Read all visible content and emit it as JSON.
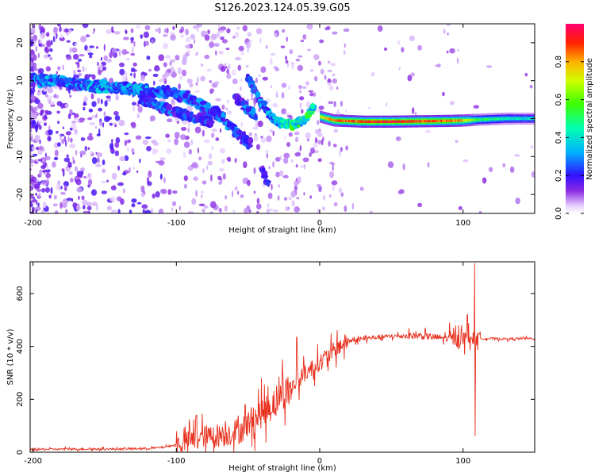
{
  "title": "S126.2023.124.05.39.G05",
  "chart_data": [
    {
      "type": "heatmap",
      "xlabel": "Height of straight line (km)",
      "ylabel": "Frequency (Hz)",
      "xlim": [
        -202,
        150
      ],
      "ylim": [
        -25,
        25
      ],
      "xticks": [
        -200,
        -100,
        0,
        100
      ],
      "xtick_labels": [
        "-200",
        "-100",
        "0",
        "100"
      ],
      "yticks": [
        -20,
        -10,
        0,
        10,
        20
      ],
      "ytick_labels": [
        "-20",
        "-10",
        "0",
        "10",
        "20"
      ],
      "colorbar": {
        "label": "Normalized spectral amplitude",
        "range": [
          0,
          1
        ],
        "ticks": [
          0.0,
          0.2,
          0.4,
          0.6,
          0.8
        ],
        "tick_labels": [
          "0.0",
          "0.2",
          "0.4",
          "0.6",
          "0.8"
        ]
      },
      "ridge": [
        {
          "x": -200,
          "y": 10,
          "a": 0.25
        },
        {
          "x": -188,
          "y": 10,
          "a": 0.35
        },
        {
          "x": -175,
          "y": 9.5,
          "a": 0.25
        },
        {
          "x": -160,
          "y": 8.8,
          "a": 0.35
        },
        {
          "x": -145,
          "y": 8.2,
          "a": 0.3
        },
        {
          "x": -130,
          "y": 7.8,
          "a": 0.3
        },
        {
          "x": -118,
          "y": 7.2,
          "a": 0.3
        },
        {
          "x": -105,
          "y": 6.8,
          "a": 0.28
        },
        {
          "x": -90,
          "y": 5.5,
          "a": 0.28
        },
        {
          "x": -80,
          "y": 3,
          "a": 0.25
        },
        {
          "x": -70,
          "y": 1,
          "a": 0.25
        },
        {
          "x": -60,
          "y": -3,
          "a": 0.3
        },
        {
          "x": -55,
          "y": -5,
          "a": 0.25
        },
        {
          "x": -48,
          "y": -7,
          "a": 0.2
        }
      ],
      "ridge2": [
        {
          "x": -125,
          "y": 5,
          "a": 0.25
        },
        {
          "x": -110,
          "y": 3,
          "a": 0.28
        },
        {
          "x": -98,
          "y": 1.5,
          "a": 0.25
        },
        {
          "x": -88,
          "y": 0.5,
          "a": 0.25
        },
        {
          "x": -75,
          "y": -1,
          "a": 0.22
        }
      ],
      "arc": [
        {
          "x": -58,
          "y": 5.5,
          "a": 0.2
        },
        {
          "x": -52,
          "y": 3,
          "a": 0.25
        },
        {
          "x": -45,
          "y": 1,
          "a": 0.25
        }
      ],
      "arc2": [
        {
          "x": -50,
          "y": 11,
          "a": 0.22
        },
        {
          "x": -45,
          "y": 7,
          "a": 0.25
        },
        {
          "x": -40,
          "y": 4,
          "a": 0.28
        },
        {
          "x": -34,
          "y": 0.5,
          "a": 0.3
        },
        {
          "x": -28,
          "y": -1,
          "a": 0.4
        },
        {
          "x": -22,
          "y": -1.5,
          "a": 0.45
        },
        {
          "x": -18,
          "y": -1.8,
          "a": 0.5
        },
        {
          "x": -12,
          "y": -0.5,
          "a": 0.45
        },
        {
          "x": -8,
          "y": 1,
          "a": 0.45
        },
        {
          "x": -5,
          "y": 3,
          "a": 0.45
        }
      ],
      "tail": [
        {
          "x": -40,
          "y": -13,
          "a": 0.2
        },
        {
          "x": -36,
          "y": -17,
          "a": 0.2
        }
      ],
      "band": [
        {
          "x": 0,
          "y": 0.5,
          "a": 0.75
        },
        {
          "x": 10,
          "y": -0.5,
          "a": 0.85
        },
        {
          "x": 30,
          "y": -0.8,
          "a": 0.92
        },
        {
          "x": 50,
          "y": -0.8,
          "a": 0.95
        },
        {
          "x": 70,
          "y": -0.7,
          "a": 0.93
        },
        {
          "x": 90,
          "y": -0.6,
          "a": 0.88
        },
        {
          "x": 100,
          "y": -0.5,
          "a": 0.8
        },
        {
          "x": 110,
          "y": -0.3,
          "a": 0.55
        },
        {
          "x": 130,
          "y": 0,
          "a": 0.45
        },
        {
          "x": 150,
          "y": 0,
          "a": 0.4
        }
      ]
    },
    {
      "type": "line",
      "xlabel": "Height of straight line (km)",
      "ylabel": "SNR (10 * v/v)",
      "xlim": [
        -202,
        150
      ],
      "ylim": [
        0,
        720
      ],
      "xticks": [
        -200,
        -100,
        0,
        100
      ],
      "xtick_labels": [
        "-200",
        "-100",
        "0",
        "100"
      ],
      "yticks": [
        0,
        200,
        400,
        600
      ],
      "ytick_labels": [
        "0",
        "200",
        "400",
        "600"
      ],
      "color": "#e8301e",
      "series": [
        {
          "x": [
            -202,
            -180,
            -160,
            -140,
            -120,
            -110,
            -100,
            -95,
            -90,
            -85,
            -80,
            -75,
            -70,
            -65,
            -60,
            -55,
            -50,
            -45,
            -40,
            -35,
            -30,
            -25,
            -20,
            -15,
            -10,
            -5,
            0,
            5,
            10,
            15,
            20,
            30,
            40,
            50,
            60,
            70,
            80,
            90,
            95,
            100,
            105,
            108,
            110,
            112,
            120,
            130,
            140,
            150
          ],
          "y": [
            10,
            12,
            12,
            12,
            14,
            18,
            28,
            35,
            45,
            55,
            60,
            60,
            65,
            70,
            75,
            85,
            110,
            130,
            150,
            170,
            200,
            220,
            240,
            270,
            300,
            320,
            340,
            360,
            385,
            405,
            420,
            428,
            435,
            438,
            440,
            440,
            435,
            430,
            425,
            430,
            432,
            430,
            428,
            430,
            430,
            428,
            430,
            430
          ]
        }
      ],
      "spikes": [
        {
          "x": -86,
          "y": 140
        },
        {
          "x": -52,
          "y": 180
        },
        {
          "x": -36,
          "y": 250
        },
        {
          "x": -26,
          "y": 350
        },
        {
          "x": -16,
          "y": 435
        },
        {
          "x": 97,
          "y": 480
        },
        {
          "x": 103,
          "y": 520
        },
        {
          "x": 108,
          "y": 715
        },
        {
          "x": 108.5,
          "y": 60
        }
      ]
    }
  ]
}
